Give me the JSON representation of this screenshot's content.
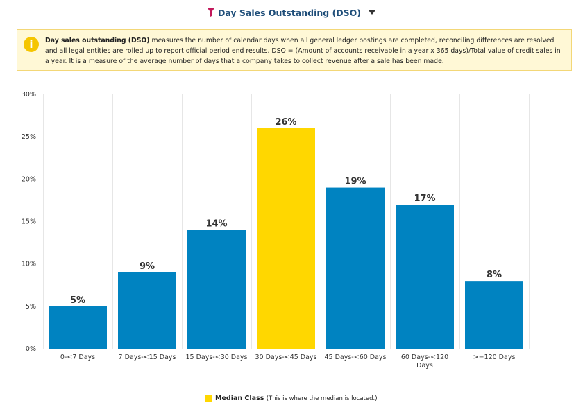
{
  "header": {
    "title": "Day Sales Outstanding (DSO)",
    "filter_icon": "filter-icon",
    "dropdown_icon": "caret-down-icon",
    "filter_color": "#c2185b",
    "title_color": "#1f4e79"
  },
  "info": {
    "icon": "info-icon",
    "term": "Day sales outstanding (DSO)",
    "text": " measures the number of calendar days when all general ledger postings are completed, reconciling differences are resolved and all legal entities are rolled up to report official period end results. DSO = (Amount of accounts receivable in a year x 365 days)/Total value of credit sales in a year. It is a measure of the average number of days that a company takes to collect revenue after a sale has been made."
  },
  "chart_data": {
    "type": "bar",
    "categories": [
      "0-<7 Days",
      "7 Days-<15 Days",
      "15 Days-<30 Days",
      "30 Days-<45 Days",
      "45 Days-<60 Days",
      "60 Days-<120 Days",
      ">=120 Days"
    ],
    "category_lines": [
      [
        "0-<7 Days"
      ],
      [
        "7 Days-<15 Days"
      ],
      [
        "15 Days-<30 Days"
      ],
      [
        "30 Days-<45 Days"
      ],
      [
        "45 Days-<60 Days"
      ],
      [
        "60 Days-<120",
        "Days"
      ],
      [
        ">=120 Days"
      ]
    ],
    "values": [
      5,
      9,
      14,
      26,
      19,
      17,
      8
    ],
    "value_labels": [
      "5%",
      "9%",
      "14%",
      "26%",
      "19%",
      "17%",
      "8%"
    ],
    "highlight_index": 3,
    "ylim": [
      0,
      30
    ],
    "yticks": [
      0,
      5,
      10,
      15,
      20,
      25,
      30
    ],
    "ytick_labels": [
      "0%",
      "5%",
      "10%",
      "15%",
      "20%",
      "25%",
      "30%"
    ],
    "bar_color": "#0083c1",
    "highlight_color": "#ffd700",
    "grid": "vertical",
    "legend": {
      "position": "bottom",
      "label": "Median Class",
      "note": "(This is where the median is located.)"
    }
  }
}
